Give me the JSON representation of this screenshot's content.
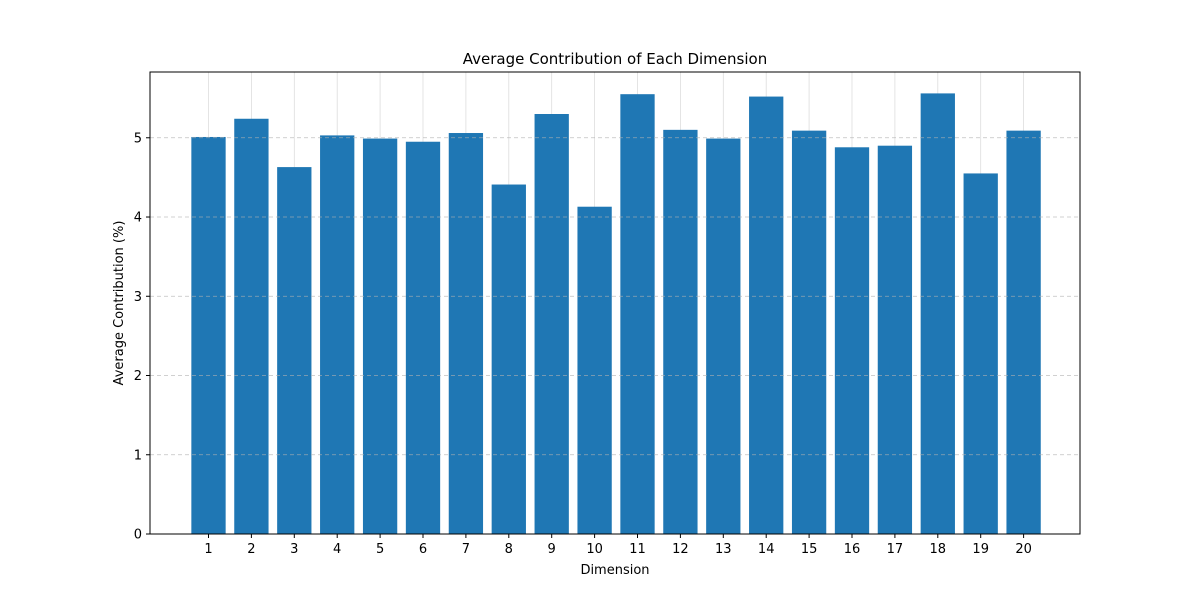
{
  "chart_data": {
    "type": "bar",
    "title": "Average Contribution of Each Dimension",
    "xlabel": "Dimension",
    "ylabel": "Average Contribution (%)",
    "categories": [
      "1",
      "2",
      "3",
      "4",
      "5",
      "6",
      "7",
      "8",
      "9",
      "10",
      "11",
      "12",
      "13",
      "14",
      "15",
      "16",
      "17",
      "18",
      "19",
      "20"
    ],
    "values": [
      5.01,
      5.24,
      4.63,
      5.03,
      4.99,
      4.95,
      5.06,
      4.41,
      5.3,
      4.13,
      5.55,
      5.1,
      4.99,
      5.52,
      5.09,
      4.88,
      4.9,
      5.56,
      4.55,
      5.09
    ],
    "ylim": [
      0,
      5.83
    ],
    "yticks": [
      0,
      1,
      2,
      3,
      4,
      5
    ],
    "grid": true,
    "bar_color": "#1f77b4"
  }
}
